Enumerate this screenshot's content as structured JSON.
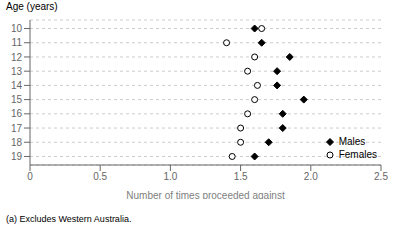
{
  "chart_data": {
    "type": "scatter",
    "orientation": "horizontal",
    "xlabel": "Number of times proceeded against",
    "ylabel": "Age (years)",
    "footnote": "(a) Excludes Western Australia.",
    "categories": [
      10,
      11,
      12,
      13,
      14,
      15,
      16,
      17,
      18,
      19
    ],
    "series": [
      {
        "name": "Males",
        "color": "black",
        "marker": "diamond",
        "values": [
          1.6,
          1.65,
          1.85,
          1.76,
          1.76,
          1.95,
          1.8,
          1.8,
          1.7,
          1.6
        ]
      },
      {
        "name": "Females",
        "color": "black",
        "marker": "circle",
        "values": [
          1.65,
          1.4,
          1.6,
          1.55,
          1.62,
          1.6,
          1.55,
          1.5,
          1.5,
          1.44
        ]
      }
    ],
    "xlim": [
      0,
      2.5
    ],
    "xticks": [
      0,
      0.5,
      {
        "value": 1,
        "label": "1.0"
      },
      1.5,
      {
        "value": 2,
        "label": "2.0"
      },
      2.5
    ],
    "ylim": [
      9.4,
      19.6
    ],
    "yticks": [
      10,
      11,
      12,
      13,
      14,
      15,
      16,
      17,
      18,
      19
    ],
    "grid": true,
    "legend": "lower right"
  }
}
